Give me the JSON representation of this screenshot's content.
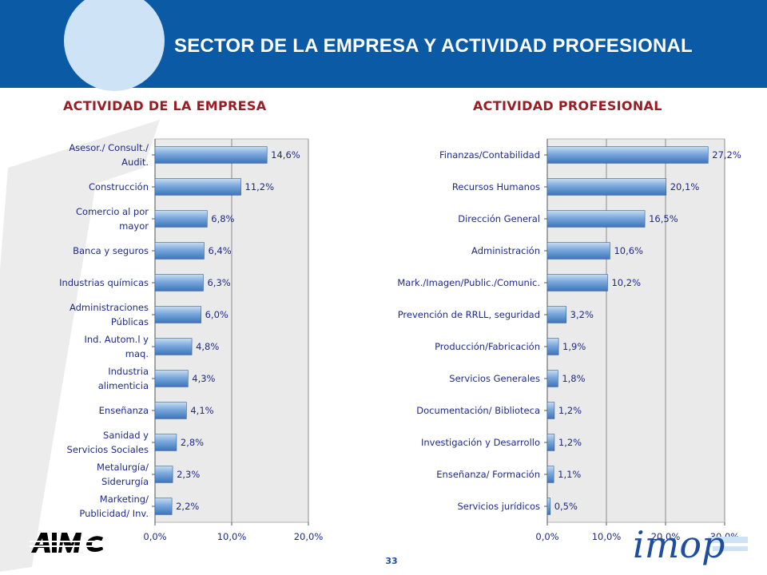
{
  "header": {
    "title": "SECTOR DE LA EMPRESA Y ACTIVIDAD PROFESIONAL"
  },
  "footer": {
    "page_number": "33",
    "logo_left_text": "AIMC",
    "logo_right_text": "imop"
  },
  "colors": {
    "header_bg": "#0a5aa6",
    "header_circle": "#cfe3f6",
    "subtitle": "#9b1c24",
    "bar": "#5f93cf",
    "bar_light": "#c7dcf2",
    "plot_bg": "#eaeaea",
    "label": "#1f2a8a"
  },
  "chart_data": [
    {
      "type": "bar",
      "orientation": "horizontal",
      "title": "ACTIVIDAD DE LA EMPRESA",
      "categories": [
        [
          "Asesor./ Consult./",
          "Audit."
        ],
        [
          "Construcción"
        ],
        [
          "Comercio al por",
          "mayor"
        ],
        [
          "Banca y seguros"
        ],
        [
          "Industrias químicas"
        ],
        [
          "Administraciones",
          "Públicas"
        ],
        [
          "Ind. Autom.l y",
          "maq."
        ],
        [
          "Industria",
          "alimenticia"
        ],
        [
          "Enseñanza"
        ],
        [
          "Sanidad y",
          "Servicios Sociales"
        ],
        [
          "Metalurgía/",
          "Siderurgía"
        ],
        [
          "Marketing/",
          "Publicidad/ Inv."
        ]
      ],
      "values": [
        14.6,
        11.2,
        6.8,
        6.4,
        6.3,
        6.0,
        4.8,
        4.3,
        4.1,
        2.8,
        2.3,
        2.2
      ],
      "value_labels": [
        "14,6%",
        "11,2%",
        "6,8%",
        "6,4%",
        "6,3%",
        "6,0%",
        "4,8%",
        "4,3%",
        "4,1%",
        "2,8%",
        "2,3%",
        "2,2%"
      ],
      "xlim": [
        0,
        20
      ],
      "ticks": [
        0,
        10,
        20
      ],
      "tick_labels": [
        "0,0%",
        "10,0%",
        "20,0%"
      ],
      "grid": true
    },
    {
      "type": "bar",
      "orientation": "horizontal",
      "title": "ACTIVIDAD PROFESIONAL",
      "categories": [
        [
          "Finanzas/Contabilidad"
        ],
        [
          "Recursos Humanos"
        ],
        [
          "Dirección General"
        ],
        [
          "Administración"
        ],
        [
          "Mark./Imagen/Public./Comunic."
        ],
        [
          "Prevención de RRLL, seguridad"
        ],
        [
          "Producción/Fabricación"
        ],
        [
          "Servicios Generales"
        ],
        [
          "Documentación/ Biblioteca"
        ],
        [
          "Investigación y Desarrollo"
        ],
        [
          "Enseñanza/ Formación"
        ],
        [
          "Servicios jurídicos"
        ]
      ],
      "values": [
        27.2,
        20.1,
        16.5,
        10.6,
        10.2,
        3.2,
        1.9,
        1.8,
        1.2,
        1.2,
        1.1,
        0.5
      ],
      "value_labels": [
        "27,2%",
        "20,1%",
        "16,5%",
        "10,6%",
        "10,2%",
        "3,2%",
        "1,9%",
        "1,8%",
        "1,2%",
        "1,2%",
        "1,1%",
        "0,5%"
      ],
      "xlim": [
        0,
        30
      ],
      "ticks": [
        0,
        10,
        20,
        30
      ],
      "tick_labels": [
        "0,0%",
        "10,0%",
        "20,0%",
        "30,0%"
      ],
      "grid": true
    }
  ]
}
